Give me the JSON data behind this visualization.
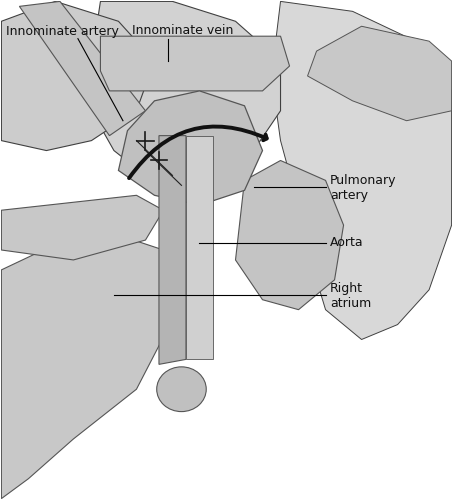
{
  "bg_color": "#ffffff",
  "fig_width": 4.53,
  "fig_height": 5.0,
  "dpi": 100,
  "labels": {
    "innominate_artery": "Innominate artery",
    "innominate_vein": "Innominate vein",
    "pulmonary_artery": "Pulmonary\nartery",
    "aorta": "Aorta",
    "right_atrium": "Right\natrium"
  },
  "font_size": 9,
  "line_color": "#000000"
}
